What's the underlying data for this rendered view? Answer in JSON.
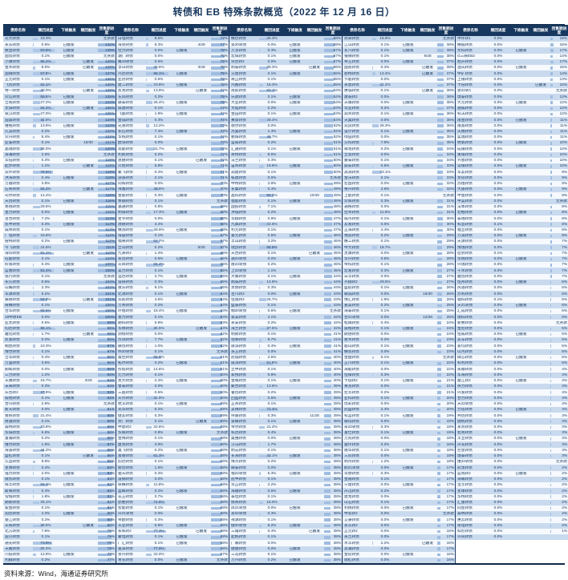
{
  "title": "转债和 EB 特殊条款概览（2022 年 12 月 16 日）",
  "source": "资料来源：Wind，海通证券研究所",
  "columns": [
    "债券名称",
    "赎回进度",
    "下修触发",
    "赎回触发",
    "回售期进度"
  ],
  "labels": {
    "triggered": "已触发",
    "no_clause": "无条款"
  },
  "colors": {
    "header_bg": "#17375E",
    "band": "#C9DAEE",
    "bar_progress": "#AFC7E6",
    "bar_put": "#9FBCE0",
    "text": "#17375E"
  },
  "groups": [
    [
      "光大转债|19.3%|||无条款",
      "永东转债|0.9%|已触发||142%",
      "模塑转债|83.9%|已触发||139%",
      "国贸转债|0.1%|已触发||无条款",
      "小康转债|86.2%||已触发|128%",
      "金禾转债|8.0%||已触发|128%",
      "国微转债|57.8%|已触发||127%",
      "正元转债|0.1%|已触发||126%",
      "飞凯转债|62.1%|||126%",
      "特一转债|40.0%||已触发|128%",
      "众信转债|55.6%|已触发||125%",
      "吉视转债|27.2%|已触发||124%",
      "太阳转债|84.2%||已触发|166%",
      "铁汉转债|27.0%|已触发||125%",
      "迪森转债|42.8%|||124%",
      "维格转债|13.9%|已触发||123%",
      "久其转债|0.2%|||122%",
      "众兴转债|5.4%|已触发||122%",
      "亚泰转债|0.1%||10/30|121%",
      "晶瑞转债|36.0%|||120%",
      "海澜转债|2.6%|||无条款",
      "华钰转债|0.3%|已触发||119%",
      "起步转债|1.1%||已触发|119%",
      "双环转债|78.5%|||118%",
      "洪涛转债|0.4%|已触发||118%",
      "万顺转债|3.8%|||117%",
      "石英转债|65.2%||已触发|117%",
      "司尔转债|12.4%|||116%",
      "天创转债|0.1%|已触发||116%",
      "寒锐转债|29.6%|||115%",
      "金力转债|0.0%|已触发||115%",
      "百合转债|7.2%|||114%",
      "凯中转债|0.3%|已触发||113%",
      "威帝转债|0.1%|||113%",
      "广电转债|16.8%|||112%",
      "搜特转债|0.2%|已触发||112%",
      "今飞转债|24.5%|||111%",
      "海印转债|81.1%||已触发|110%",
      "旺能转债|0.1%|||110%",
      "岭南转债|0.4%|已触发||109%",
      "蓝盾转债|81.4%|已触发||109%",
      "张行转债|0.1%|||无条款",
      "长久转债|0.6%|||103%",
      "山鹰转债|2.3%|||102%",
      "华源转债|6.2%|||101%",
      "振德转债|54.9%||已触发|101%",
      "奇精转债|0.1%|||100%",
      "台华转债|69.5%|已触发||100%",
      "19中原EB|0.0%|||100%",
      "亚太转债|0.5%|已触发||99%",
      "钧达转债|88.1%|||99%",
      "雅化转债|1.7%||已触发|98%",
      "凯发转债|0.2%|已触发||98%",
      "桐昆转债|10.3%|||97%",
      "博世转债|0.1%|||97%",
      "吉华转债|0.4%|已触发||96%",
      "万里转债|3.5%|||96%",
      "翔鹭转债|0.0%|已触发||95%",
      "三力转债|1.2%|||94%",
      "天康转债|15.7%||4/28|94%",
      "未来转债|0.3%|||93%",
      "乐普转2|47.9%|已触发||93%",
      "城地转债|0.1%|已触发||92%",
      "合兴转债|2.9%|||无条款",
      "新天转债|0.0%|已触发||91%",
      "春秋转债|21.4%|||90%",
      "财通转债|0.1%|||90%",
      "森特转债|33.8%|||89%",
      "华阳转债|6.6%|已触发||88%",
      "富瀚转债|0.2%|||88%",
      "维尔转债|1.5%|已触发||87%",
      "海波转债|44.2%|||86%",
      "盛虹转债|0.1%||已触发|86%",
      "久吾转债|8.8%|||85%",
      "星帅转债|0.4%|||84%",
      "强力转债|2.0%|已触发||84%",
      "键凯转债|0.1%|||83%",
      "辉丰转债|59.3%|已触发||82%",
      "斯莱转债|0.3%|||82%",
      "雪榕转债|1.8%|已触发||81%",
      "朗新转债|25.1%|||81%",
      "紫金转债|0.1%|||81%",
      "润达转债|4.3%|已触发||80%",
      "楚江转债|0.2%|||80%",
      "天铁转债|38.6%||已触发|80%",
      "北方转债|7.8%|||79%",
      "迪贝转债|0.1%|||79%",
      "通光转债|73.8%|||79%",
      "天路转债|35.0%|||79%",
      "川投转债|12.9%|已触发||78%",
      "利群转债|0.2%|||77%"
    ],
    [
      "白电转债|8.6%|||77%",
      "海亮转债|8.3%||4/28|77%",
      "佳力转债|0.0%|已触发||76%",
      "湖广转债|0.0%|||75%",
      "鹰19转债|0.6%|||75%",
      "孚日转债|42.5%||3/28|76%",
      "鸿达转债|86.1%|已触发||75%",
      "亚药转债|0.6%|||75%",
      "建工转债|23.8%|已触发||75%",
      "凯龙转债|13.9%||已触发|74%",
      "东风转债|0.2%|||75%",
      "联泰转债|26.4%|已触发||75%",
      "威唐转债|0.1%|||74%",
      "飞鹿转债|1.9%|已触发||74%",
      "金诚转债|0.3%|||74%",
      "兄弟转债|12.2%|||73%",
      "长信转债|7.4%|已触发||73%",
      "华统转债|0.1%|||74%",
      "欧派转债|0.0%|||73%",
      "高能转债|31.7%|已触发||72%",
      "利民转债|0.2%|||72%",
      "恩捷转债|0.1%||已触发|72%",
      "火炬转债|5.8%|||71%",
      "聚飞转债|0.4%|已触发||71%",
      "游族转债|2.1%|||71%",
      "同和转债|0.0%|||70%",
      "祥鑫转债|48.6%|||70%",
      "金能转债|0.3%|已触发||70%",
      "本钢转债|0.1%|||无条款",
      "瀛通转债|0.8%|||69%",
      "明阳转债|17.3%|已触发||69%",
      "星宇转债|0.0%|||68%",
      "濮耐转债|3.4%|||68%",
      "精测转债|28.9%|已触发||68%",
      "海容转债|0.1%|||67%",
      "福莱转债|52.7%|||67%",
      "立讯转债|0.2%||5/30|67%",
      "九洲转2|1.4%|||66%",
      "永创转债|0.5%|已触发||66%",
      "天目转债|66.4%|||66%",
      "美力转债|0.1%|||65%",
      "运达转债|2.7%|已触发||65%",
      "设研转债|0.3%|||65%",
      "敖东转债|9.1%|||65%",
      "北港转债|0.1%|已触发||64%",
      "双箭转债|4.6%|||64%",
      "万青转债|0.2%|||64%",
      "环旭转债|18.4%|已触发||63%",
      "塞力转债|0.1%|||63%",
      "朗科转债|0.9%|||63%",
      "华体转债|36.5%||已触发|63%",
      "测绘转债|0.0%|||62%",
      "苏试转债|7.7%|已触发||62%",
      "联创转债|1.0%|||62%",
      "伟20转债|0.1%|||无条款",
      "奥佳转债|58.9%|||61%",
      "拓尔转债|0.2%|已触发||61%",
      "彤程转债|14.6%|||61%",
      "元力转债|0.1%|||60%",
      "龙大转债|2.4%|已触发||60%",
      "鲁泰转债|0.0%|||60%",
      "三超转债|0.6%|||60%",
      "天奈转债|41.9%|||60%",
      "杭叉转债|0.1%|已触发||59%",
      "光华转债|5.2%|||59%",
      "健友转债|0.3%|||59%",
      "贵广转债|0.1%||已触发|59%",
      "中鼎转2|22.6%|||59%",
      "华锋转债|0.8%|已触发||无条款",
      "金博转债|0.1%|||58%",
      "盘龙转债|3.9%|||58%",
      "奥飞转债|0.2%|已触发||58%",
      "富春转债|61.3%|||58%",
      "韵达转债|0.1%|||58%",
      "耐普转债|1.6%|已触发||58%",
      "楚天转债|0.4%|||58%",
      "凌钢转债|0.0%|||58%",
      "纵横转债|11.8%|||58%",
      "盈峰转债|0.2%|已触发||58%",
      "花王转债|0.7%|||58%",
      "鼎胜转债|74.8%|||58%",
      "智能转债|0.1%|已触发||58%",
      "升21转债|0.0%|||58%",
      "帝欧转债|0.3%|||58%",
      "天业转债|6.9%|已触发||58%",
      "永和转2|77.3%||已触发|58%",
      "蒙电转债|0.1%|已触发||58%",
      "广汇转债|0.1%|已触发||58%",
      "嘉泽转债|77.9%|||58%",
      "景兴转债|22.0%|||57%",
      "青农转债|0.0%|已触发||无条款"
    ],
    [
      "精达转债|35.3%|||58%",
      "景20转债|0.0%|已触发||58%",
      "万孚转债|0.3%|已触发||57%",
      "宏辉转债|0.1%|已触发||57%",
      "崇达转2|0.0%|已触发||57%",
      "明泰转债|35.3%||已触发|56%",
      "交建转债|0.1%|已触发||56%",
      "奇正转债|0.1%|||55%",
      "鸿路转债|16.3%|||55%",
      "南航转债|63.1%|||54%",
      "乐歌转债|0.1%|已触发||54%",
      "大业转债|0.0%|已触发||54%",
      "文灿转债|0.2%|||53%",
      "金田转债|0.1%|已触发||53%",
      "赛意转债|28.4%|||53%",
      "德尔转债|0.0%|||52%",
      "苏奥转债|1.3%|已触发||52%",
      "鹏辉转债|45.7%|||52%",
      "垒知转债|0.2%|||51%",
      "汇通转债|0.1%|已触发||51%",
      "英特转债|8.5%|||51%",
      "法兰转债|0.3%|||50%",
      "宙邦转债|19.8%|已触发||50%",
      "润建转债|0.1%|||50%",
      "核建转债|0.0%|||无条款",
      "中特转债|2.8%|已触发||49%",
      "长集转债|0.4%|||49%",
      "晶科转债|56.2%||10/30|49%",
      "福能转债|0.1%|已触发||48%",
      "国投转债|7.1%|||48%",
      "洪城转债|0.2%|||48%",
      "华翔转债|0.9%|已触发||47%",
      "九典转债|32.6%|||47%",
      "利元转债|0.1%|||47%",
      "嘉元转债|0.5%|已触发||46%",
      "丰山转债|3.2%|||46%",
      "瑞鹄转债|68.9%|||46%",
      "天合转债|0.1%||已触发|45%",
      "通22转债|0.0%|已触发||45%",
      "隆22转债|0.2%|||45%",
      "上22转债|1.1%|||45%",
      "大秦转债|0.1%|已触发||44%",
      "闻泰转债|14.9%|||44%",
      "贵燃转债|0.3%|||44%",
      "百川转2|0.0%|已触发||43%",
      "恒逸转2|26.7%|||43%",
      "盛泰转债|0.1%|||43%",
      "桐20转债|0.6%|已触发||无条款",
      "豪美转债|4.1%|||42%",
      "永安转债|0.2%|||42%",
      "海兰转债|37.5%|已触发||42%",
      "明新转债|0.1%|||41%",
      "珀莱转债|9.7%|||41%",
      "旗滨转债|0.4%|已触发||41%",
      "孩王转债|0.0%|||41%",
      "冠城转债|2.5%|||40%",
      "威派转债|51.8%|已触发||40%",
      "立中转债|0.1%|||40%",
      "家悦转债|0.8%|||40%",
      "金埔转债|0.1%|已触发||40%",
      "聚合转债|13.6%|||39%",
      "睿创转债|0.2%|||39%",
      "回盛转债|0.5%|已触发||39%",
      "正邦转债|0.1%|||39%",
      "美锦转债|72.4%|||39%",
      "伟隆转债|0.3%||11/28|39%",
      "泉峰转债|0.1%|已触发||38%",
      "帝尔转债|21.2%|||38%",
      "科达转债|0.4%|||38%",
      "奥维转债|0.0%|已触发||38%",
      "汉马转债|1.7%|||38%",
      "明志转债|0.1%|||38%",
      "长海转债|43.1%|已触发||38%",
      "博杰转债|0.2%|||38%",
      "嵘泰转债|0.0%|||38%",
      "福22转债|5.3%|已触发||38%",
      "冠中转债|0.1%|||38%",
      "华正转债|2.2%|||38%",
      "海顺转债|0.6%|已触发||38%",
      "泰坦转债|0.1%|||38%",
      "佩蒂转债|16.0%|||38%",
      "凤21转债|0.0%|已触发||38%",
      "永02转债|0.3%|||38%",
      "祥源转债|0.1%|||38%",
      "健20转债|8.2%|已触发||38%",
      "三角转债|0.4%||已触发|38%",
      "起帆转债|0.1%|||38%",
      "广联转债|0.0%|||38%",
      "捷捷转债|0.0%|已触发||38%",
      "三花转债|0.1%|||38%",
      "万兴转债|0.2%|已触发||38%"
    ],
    [
      "尚荣转债|16.9%|||无条款",
      "江山转债|0.1%|已触发||38%",
      "长汽转债|0.1%|已触发||38%",
      "银微转债|0.1%||9/28|38%",
      "帝王转债|0.0%|已触发||37%",
      "国祯转债|0.4%||已触发|38%",
      "伯特转债|13.4%||已触发|37%",
      "节能转债|0.0%|||37%",
      "永鼎转债|41.2%|||37%",
      "惠城转债|0.1%||已触发|38%",
      "康泰转2|0.0%|||38%",
      "天壕转债|0.0%|已触发||38%",
      "华亚转债|0.2%|||37%",
      "润禾转债|0.1%|已触发||36%",
      "天奥转债|0.0%|||36%",
      "双良转债|25.3%|||36%",
      "设计转债|0.1%|已触发||35%",
      "绿茵转债|0.0%|||35%",
      "交科转债|7.8%|||35%",
      "锋龙转债|0.2%|已触发||34%",
      "立高转债|0.0%|||34%",
      "蒙泰转债|0.1%|||34%",
      "震安转债|0.5%|已触发||33%",
      "高测转债|33.1%|||33%",
      "金沃转债|0.1%|||33%",
      "宏昌转债|0.0%|已触发||32%",
      "裕兴转债|2.6%|||32%",
      "上能转债|0.1%|||无条款",
      "众和转债|0.3%|已触发||31%",
      "通裕转债|0.0%|||31%",
      "佳禾转债|11.5%|||31%",
      "城市转债|0.1%|已触发||30%",
      "友发转债|0.0%|||30%",
      "正海转债|4.4%|||30%",
      "锦浪转债|0.2%|已触发||29%",
      "精工转债|0.1%|||29%",
      "中大转债|18.7%|||29%",
      "灵康转债|0.0%|已触发||28%",
      "华兴转债|0.6%|||28%",
      "帝科转债|0.1%|||28%",
      "宏发转债|0.3%|已触发||27%",
      "日丰转债|0.0%|||27%",
      "齐翔转2|29.5%|||27%",
      "盛航转债|0.1%|已触发||26%",
      "联诚转债|0.0%||15/30|26%",
      "博汇转债|1.9%|||26%",
      "嘉美转债|0.2%|已触发||25%",
      "海泰转债|0.1%|||25%",
      "台21转债|0.0%||12/28|25%",
      "松霖转债|0.4%|||24%",
      "震裕转债|0.1%|已触发||24%",
      "朗进转债|0.0%|||24%",
      "君禾转债|0.2%|||23%",
      "鹿山转债|0.1%|已触发||23%",
      "精装转债|0.0%|||23%",
      "金盘转债|6.1%|||无条款",
      "正川转债|0.1%|已触发||22%",
      "海能转债|0.0%|||22%",
      "恒锋转债|0.3%|||22%",
      "卡倍转2|0.1%|已触发||21%",
      "莱克转债|0.0%|||21%",
      "宏丰转债|0.2%|||21%",
      "亚科转债|0.1%|已触发||20%",
      "优彩转债|0.0%|||20%",
      "冠盛转债|2.4%|||20%",
      "科蓝转债|0.1%|已触发||19%",
      "联得转债|0.0%|||19%",
      "永22转债|0.3%|||19%",
      "富仕转债|0.1%|已触发||19%",
      "万凯转债|0.0%|||18%",
      "楚环转债|0.2%|||18%",
      "隆华转债|0.1%|已触发||18%",
      "三房转债|0.0%|||18%",
      "明月转债|1.2%|||18%",
      "鹤21转债|0.0%|已触发||17%",
      "华懋转债|0.3%|||17%",
      "金陵转债|0.1%|||17%",
      "宁建转债|0.0%|已触发||17%",
      "声迅转债|0.2%|||17%",
      "建龙转债|0.0%|||17%",
      "山石转债|0.1%|||17%",
      "利扬转债|0.0%|已触发||17%",
      "中装转2|0.0%|||无条款",
      "艾录转债|0.0%|已触发||17%",
      "永东转2|0.0%|||17%",
      "正元转2|0.0%|||16%",
      "永吉转债|0.0%|||17%",
      "禾丰转债|2.2%||已触发|16%",
      "高澜转债|0.0%|||17%",
      "金轮转债|0.0%|已触发||16%",
      "雨虹转债|0.0%|||16%"
    ],
    [
      "中环转1|0.0%|||15%",
      "精锻转债|0.0%|||16%",
      "文科转债|0.0%|已触发||17%",
      "G三峡EB2|0.0%|||14%",
      "旭升转债|0.0%|||17%",
      "温氏转债|0.0%|已触发||15%",
      "中矿转债|0.0%|||14%",
      "上银转债|0.0%|||13%",
      "卡倍转债|0.0%||已触发|15%",
      "浙22转1|0.0%|||无条款",
      "璞泰转债|0.0%|||12%",
      "大元转债|0.0%|已触发||12%",
      "通威转债|0.0%|||12%",
      "科沃转债|0.0%|||12%",
      "甬金转债|0.0%|已触发||11%",
      "隆基转债|0.0%|||11%",
      "天赐转债|0.0%|||11%",
      "奕瑞转债|0.0%|||11%",
      "杭氧转债|0.0%|已触发||10%",
      "成银转债|0.0%|||10%",
      "重银转债|0.0%|||10%",
      "齐鲁转债|0.0%|||10%",
      "常银转债|0.0%|已触发||10%",
      "华友转债|0.0%|||9%",
      "贵轮转债|0.0%|||9%",
      "苏租转债|0.0%|||9%",
      "大族转债|0.0%|已触发||9%",
      "中金转债|0.0%|||9%",
      "申昊转债|0.0%|||无条款",
      "法本转债|0.0%|||8%",
      "宏柏转债|0.0%|已触发||8%",
      "泰瑞转债|0.0%|||8%",
      "科思转债|0.1%|||8%",
      "福立转债|0.0%|||8%",
      "万润转债|0.0%|已触发||8%",
      "天源转债|0.0%|||7%",
      "博瑞转债|0.0%|||7%",
      "密封转债|0.1%|||7%",
      "华锐转债|0.0%|已触发||7%",
      "兴瑞转债|0.0%|||7%",
      "千禾转债|0.0%|||7%",
      "雅创转债|0.0%|||7%",
      "恒邦转债|0.0%|已触发||6%",
      "风语转债|0.0%|||6%",
      "苏利转债|0.0%|||6%",
      "锂科转债|0.1%|||6%",
      "天21转债|0.0%|已触发||6%",
      "汇成转债|0.0%|||6%",
      "瑞科转债|0.0%|||6%",
      "新致转债|0.0%|||无条款",
      "金宏转债|0.0%|||5%",
      "恒威转债|0.0%|已触发||5%",
      "友车转债|0.0%|||5%",
      "爱玛转债|0.0%|||5%",
      "山河转债|0.0%|||5%",
      "微芯转债|0.0%|已触发||5%",
      "科利转债|0.0%|||5%",
      "永顺转债|0.0%|||4%",
      "华海转债|0.0%|||4%",
      "楚江转2|0.0%|已触发||4%",
      "英力转债|0.0%|||4%",
      "兴发转债|0.0%|||4%",
      "合力转债|0.0%|||4%",
      "天22转债|0.0%|||4%",
      "力诺转债|0.0%|已触发||4%",
      "共创转债|0.0%|||3%",
      "健帆转债|0.0%|||3%",
      "永贵转债|0.0%|||3%",
      "智尚转债|0.0%|||3%",
      "丰立转债|0.0%|已触发||3%",
      "声光转债|0.0%|||3%",
      "巨星转债|0.0%|||3%",
      "瑞泰转债|0.0%|||3%",
      "维22转债|0.0%|||无条款",
      "冠龙转债|0.0%|||2%",
      "蓝晓转2|0.0%|已触发||2%",
      "海联转债|0.0%|||2%",
      "宝丰转债|0.0%|||2%",
      "星球转债|0.0%|||2%",
      "华特转债|0.0%|||2%",
      "汇隆转债|0.0%|||2%",
      "同星转债|0.0%|||2%",
      "泰林转债|0.0%|||2%",
      "惠云转债|0.0%|||2%",
      "南电转债|0.0%|||2%",
      "科伦转债|0.0%|||1%",
      "兴同转债|0.0%|||"
    ]
  ]
}
